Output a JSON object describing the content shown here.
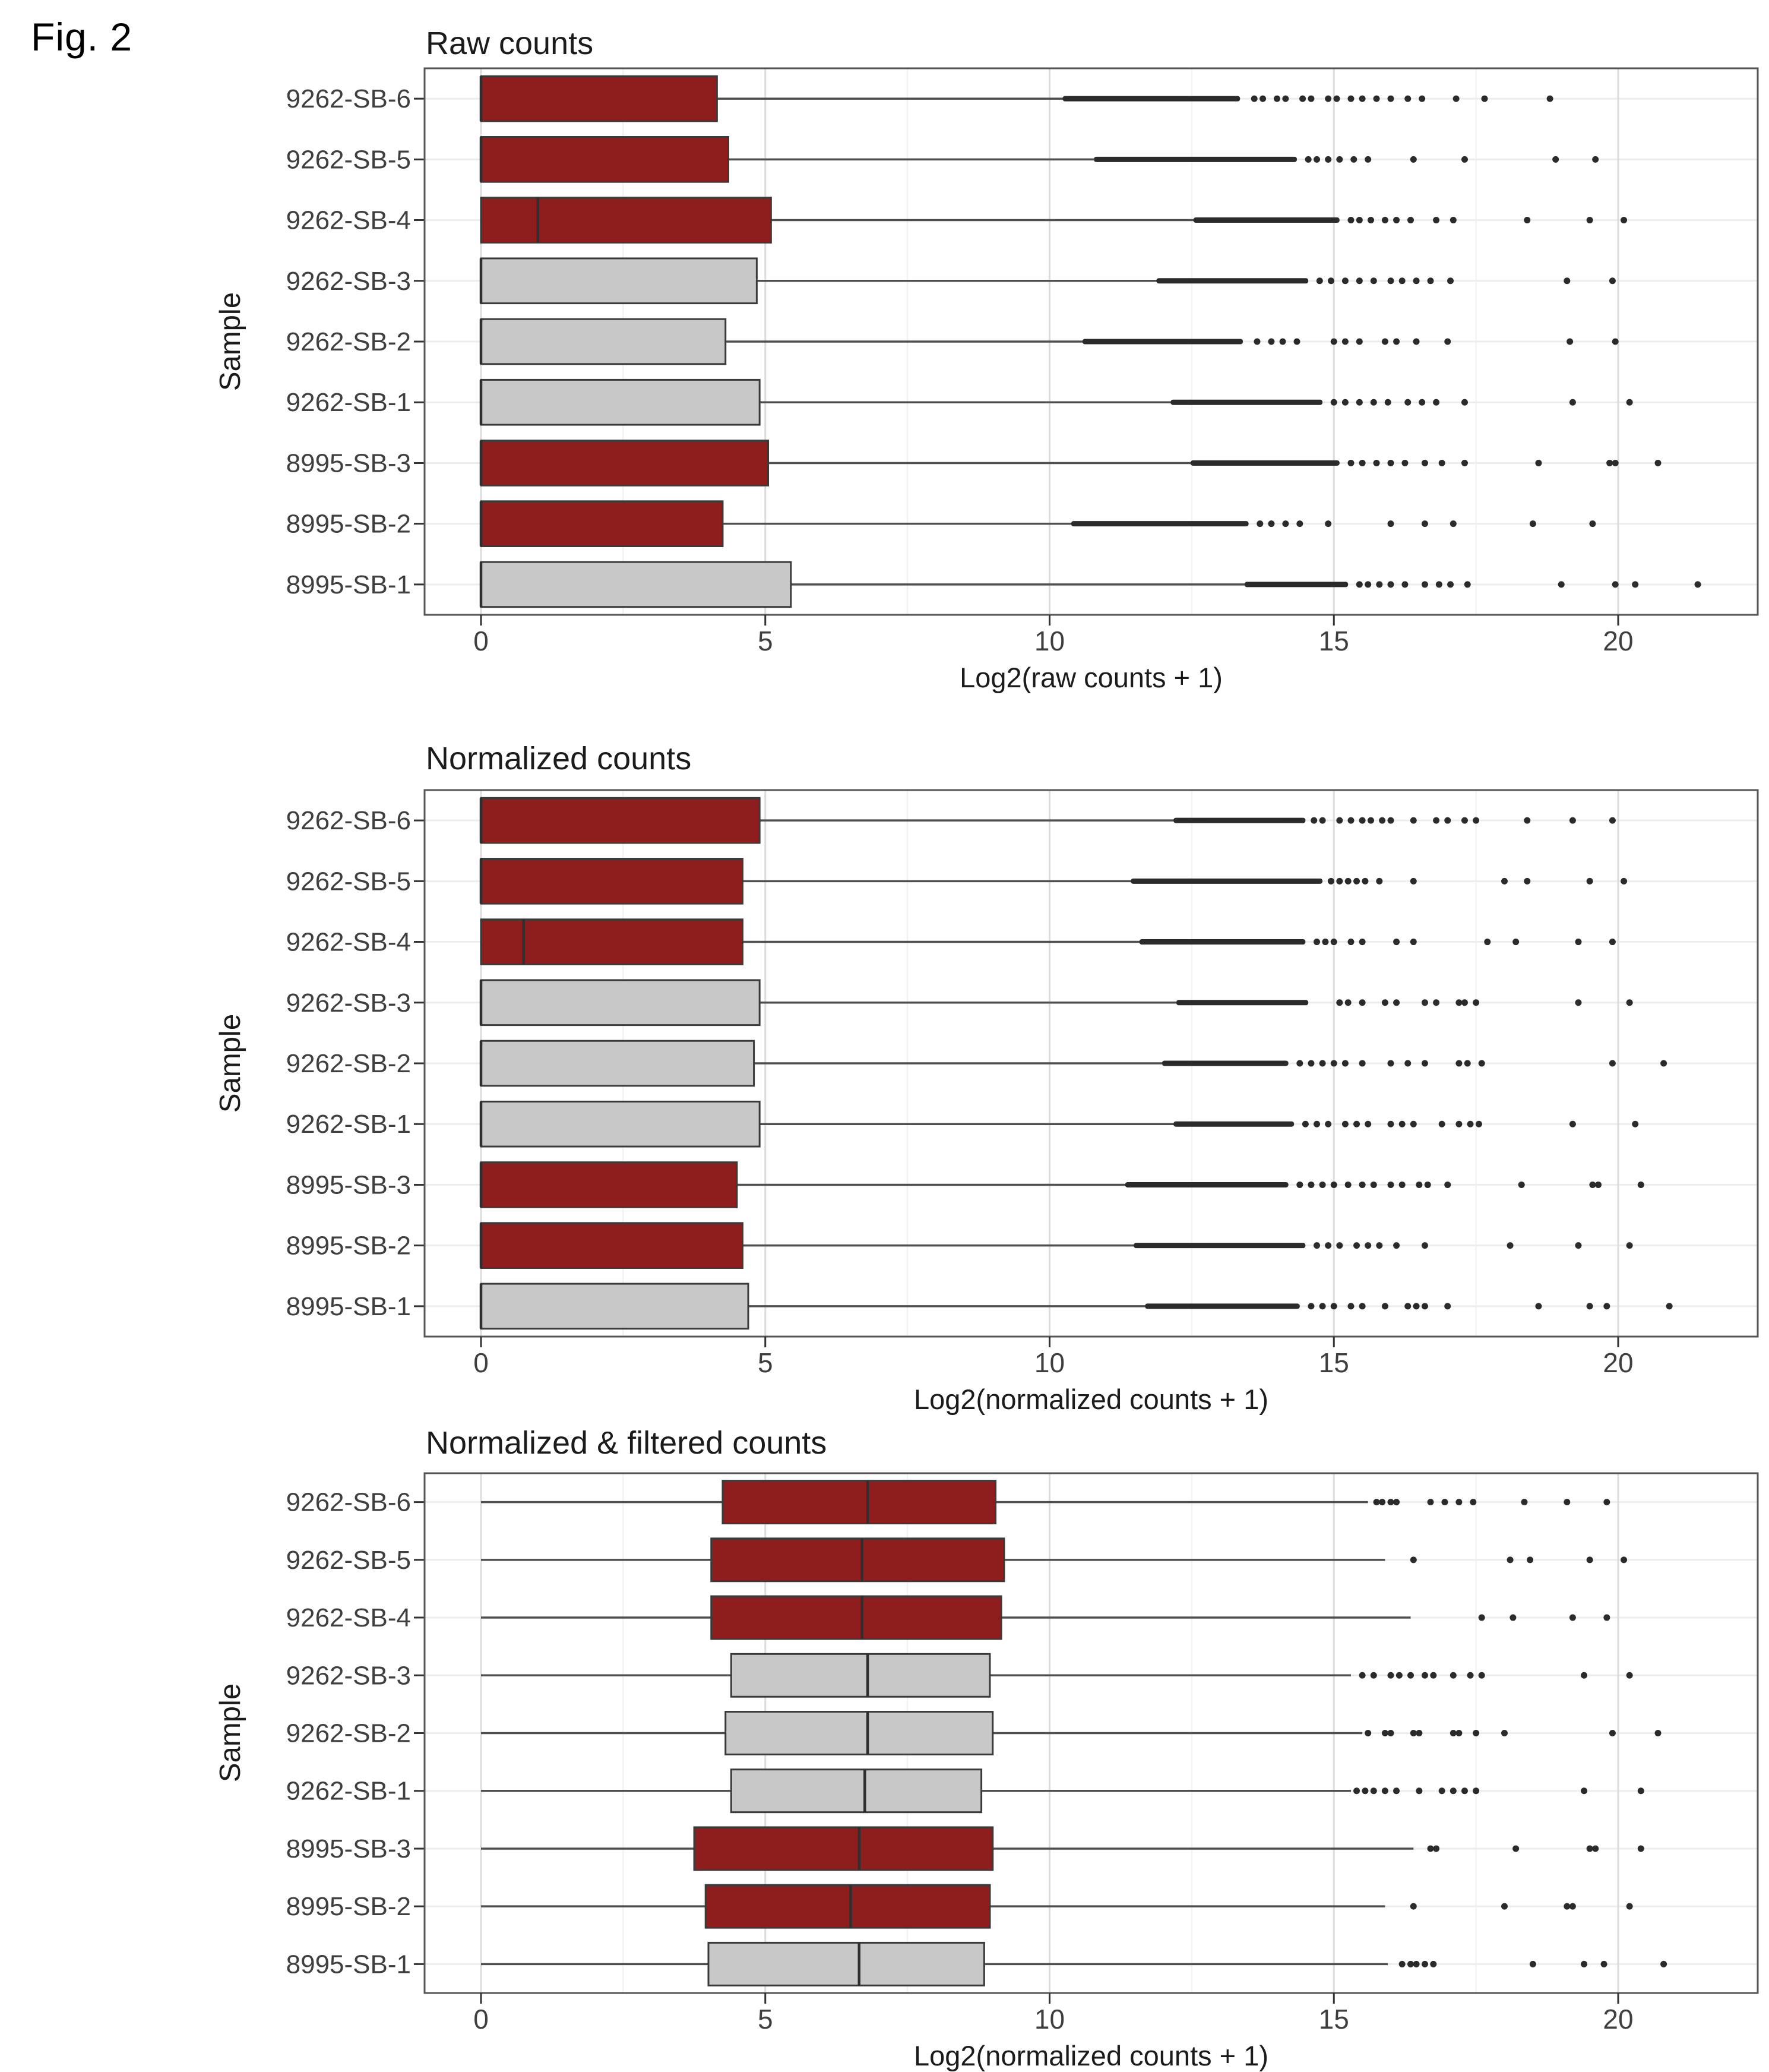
{
  "figure_label": "Fig. 2",
  "colors": {
    "red_fill": "#8E1E1E",
    "gray_fill": "#C8C8C8",
    "box_border": "#3A3A3A",
    "median_line": "#2F2F2F",
    "whisker": "#4E4E4E",
    "point": "#2B2B2B",
    "grid_major": "#DCDCDC",
    "grid_minor": "#F0F0F0",
    "panel_border": "#555555",
    "tick_text": "#3F3F3F",
    "row_gridline": "#EDEDED"
  },
  "samples": [
    "9262-SB-6",
    "9262-SB-5",
    "9262-SB-4",
    "9262-SB-3",
    "9262-SB-2",
    "9262-SB-1",
    "8995-SB-3",
    "8995-SB-2",
    "8995-SB-1"
  ],
  "chart_data": [
    {
      "type": "boxplot",
      "orientation": "horizontal",
      "title": "Raw counts",
      "xlabel": "Log2(raw counts + 1)",
      "ylabel": "Sample",
      "x_ticks": [
        0,
        5,
        10,
        15,
        20
      ],
      "x_minor_ticks": [
        2.5,
        7.5,
        12.5,
        17.5
      ],
      "x_range": [
        -1,
        22.4
      ],
      "grid": true,
      "rows": [
        {
          "sample": "9262-SB-6",
          "color": "red",
          "q1": 0,
          "median": 0,
          "q3": 4.15,
          "whisker_lo": 0,
          "whisker_hi": 10.25,
          "dense_to": 13.35,
          "outliers": [
            13.6,
            13.75,
            14.0,
            14.15,
            14.45,
            14.6,
            14.9,
            15.05,
            15.3,
            15.5,
            15.75,
            16.0,
            16.3,
            16.55,
            17.15,
            17.65,
            18.8
          ]
        },
        {
          "sample": "9262-SB-5",
          "color": "red",
          "q1": 0,
          "median": 0,
          "q3": 4.35,
          "whisker_lo": 0,
          "whisker_hi": 10.8,
          "dense_to": 14.35,
          "outliers": [
            14.55,
            14.7,
            14.9,
            15.1,
            15.35,
            15.6,
            16.4,
            17.3,
            18.9,
            19.6
          ]
        },
        {
          "sample": "9262-SB-4",
          "color": "red",
          "q1": 0,
          "median": 1.0,
          "q3": 5.1,
          "whisker_lo": 0,
          "whisker_hi": 12.55,
          "dense_to": 15.1,
          "outliers": [
            15.3,
            15.45,
            15.65,
            15.9,
            16.1,
            16.35,
            16.8,
            17.1,
            18.4,
            19.5,
            20.1
          ]
        },
        {
          "sample": "9262-SB-3",
          "color": "gray",
          "q1": 0,
          "median": 0,
          "q3": 4.85,
          "whisker_lo": 0,
          "whisker_hi": 11.9,
          "dense_to": 14.55,
          "outliers": [
            14.75,
            14.95,
            15.2,
            15.45,
            15.7,
            16.0,
            16.2,
            16.45,
            16.7,
            17.05,
            19.1,
            19.9
          ]
        },
        {
          "sample": "9262-SB-2",
          "color": "gray",
          "q1": 0,
          "median": 0,
          "q3": 4.3,
          "whisker_lo": 0,
          "whisker_hi": 10.6,
          "dense_to": 13.4,
          "outliers": [
            13.65,
            13.9,
            14.1,
            14.35,
            15.0,
            15.2,
            15.45,
            15.9,
            16.1,
            16.45,
            17.0,
            19.15,
            19.95
          ]
        },
        {
          "sample": "9262-SB-1",
          "color": "gray",
          "q1": 0,
          "median": 0,
          "q3": 4.9,
          "whisker_lo": 0,
          "whisker_hi": 12.15,
          "dense_to": 14.8,
          "outliers": [
            15.0,
            15.2,
            15.45,
            15.7,
            15.95,
            16.3,
            16.55,
            16.8,
            17.3,
            19.2,
            20.2
          ]
        },
        {
          "sample": "8995-SB-3",
          "color": "red",
          "q1": 0,
          "median": 0,
          "q3": 5.05,
          "whisker_lo": 0,
          "whisker_hi": 12.5,
          "dense_to": 15.1,
          "outliers": [
            15.3,
            15.5,
            15.75,
            16.0,
            16.25,
            16.6,
            16.9,
            17.3,
            18.6,
            19.85,
            19.95,
            20.7
          ]
        },
        {
          "sample": "8995-SB-2",
          "color": "red",
          "q1": 0,
          "median": 0,
          "q3": 4.25,
          "whisker_lo": 0,
          "whisker_hi": 10.4,
          "dense_to": 13.5,
          "outliers": [
            13.7,
            13.9,
            14.15,
            14.4,
            14.9,
            16.0,
            16.6,
            17.1,
            18.5,
            19.55
          ]
        },
        {
          "sample": "8995-SB-1",
          "color": "gray",
          "q1": 0,
          "median": 0,
          "q3": 5.45,
          "whisker_lo": 0,
          "whisker_hi": 13.45,
          "dense_to": 15.25,
          "outliers": [
            15.45,
            15.6,
            15.8,
            16.0,
            16.25,
            16.6,
            16.85,
            17.05,
            17.35,
            19.0,
            19.95,
            20.3,
            21.4
          ]
        }
      ]
    },
    {
      "type": "boxplot",
      "orientation": "horizontal",
      "title": "Normalized counts",
      "xlabel": "Log2(normalized counts + 1)",
      "ylabel": "Sample",
      "x_ticks": [
        0,
        5,
        10,
        15,
        20
      ],
      "x_minor_ticks": [
        2.5,
        7.5,
        12.5,
        17.5
      ],
      "x_range": [
        -1,
        22.4
      ],
      "grid": true,
      "rows": [
        {
          "sample": "9262-SB-6",
          "color": "red",
          "q1": 0,
          "median": 0,
          "q3": 4.9,
          "whisker_lo": 0,
          "whisker_hi": 12.2,
          "dense_to": 14.5,
          "outliers": [
            14.65,
            14.8,
            15.1,
            15.3,
            15.5,
            15.65,
            15.85,
            16.0,
            16.4,
            16.8,
            17.0,
            17.3,
            17.5,
            18.4,
            19.2,
            19.9
          ]
        },
        {
          "sample": "9262-SB-5",
          "color": "red",
          "q1": 0,
          "median": 0,
          "q3": 4.6,
          "whisker_lo": 0,
          "whisker_hi": 11.45,
          "dense_to": 14.8,
          "outliers": [
            14.95,
            15.1,
            15.25,
            15.4,
            15.55,
            15.8,
            16.4,
            18.0,
            18.4,
            19.5,
            20.1
          ]
        },
        {
          "sample": "9262-SB-4",
          "color": "red",
          "q1": 0,
          "median": 0.75,
          "q3": 4.6,
          "whisker_lo": 0,
          "whisker_hi": 11.6,
          "dense_to": 14.5,
          "outliers": [
            14.7,
            14.85,
            15.0,
            15.3,
            15.5,
            16.1,
            16.4,
            17.7,
            18.2,
            19.3,
            19.9
          ]
        },
        {
          "sample": "9262-SB-3",
          "color": "gray",
          "q1": 0,
          "median": 0,
          "q3": 4.9,
          "whisker_lo": 0,
          "whisker_hi": 12.25,
          "dense_to": 14.55,
          "outliers": [
            15.1,
            15.25,
            15.5,
            15.9,
            16.1,
            16.6,
            16.8,
            17.2,
            17.3,
            17.5,
            19.3,
            20.2
          ]
        },
        {
          "sample": "9262-SB-2",
          "color": "gray",
          "q1": 0,
          "median": 0,
          "q3": 4.8,
          "whisker_lo": 0,
          "whisker_hi": 12.0,
          "dense_to": 14.2,
          "outliers": [
            14.4,
            14.6,
            14.8,
            15.0,
            15.2,
            15.5,
            16.0,
            16.3,
            16.6,
            17.2,
            17.35,
            17.6,
            19.9,
            20.8
          ]
        },
        {
          "sample": "9262-SB-1",
          "color": "gray",
          "q1": 0,
          "median": 0,
          "q3": 4.9,
          "whisker_lo": 0,
          "whisker_hi": 12.2,
          "dense_to": 14.3,
          "outliers": [
            14.5,
            14.7,
            14.9,
            15.2,
            15.4,
            15.6,
            16.0,
            16.2,
            16.4,
            16.9,
            17.2,
            17.4,
            17.55,
            19.2,
            20.3
          ]
        },
        {
          "sample": "8995-SB-3",
          "color": "red",
          "q1": 0,
          "median": 0,
          "q3": 4.5,
          "whisker_lo": 0,
          "whisker_hi": 11.35,
          "dense_to": 14.2,
          "outliers": [
            14.4,
            14.6,
            14.8,
            15.0,
            15.25,
            15.5,
            15.7,
            16.0,
            16.2,
            16.5,
            16.65,
            17.0,
            18.3,
            19.55,
            19.65,
            20.4
          ]
        },
        {
          "sample": "8995-SB-2",
          "color": "red",
          "q1": 0,
          "median": 0,
          "q3": 4.6,
          "whisker_lo": 0,
          "whisker_hi": 11.5,
          "dense_to": 14.5,
          "outliers": [
            14.7,
            14.9,
            15.1,
            15.4,
            15.6,
            15.8,
            16.1,
            16.6,
            18.1,
            19.3,
            20.2
          ]
        },
        {
          "sample": "8995-SB-1",
          "color": "gray",
          "q1": 0,
          "median": 0,
          "q3": 4.7,
          "whisker_lo": 0,
          "whisker_hi": 11.7,
          "dense_to": 14.4,
          "outliers": [
            14.6,
            14.8,
            15.0,
            15.3,
            15.5,
            15.9,
            16.3,
            16.45,
            16.6,
            17.0,
            18.6,
            19.5,
            19.8,
            20.9
          ]
        }
      ]
    },
    {
      "type": "boxplot",
      "orientation": "horizontal",
      "title": "Normalized & filtered counts",
      "xlabel": "Log2(normalized counts + 1)",
      "ylabel": "Sample",
      "x_ticks": [
        0,
        5,
        10,
        15,
        20
      ],
      "x_minor_ticks": [
        2.5,
        7.5,
        12.5,
        17.5
      ],
      "x_range": [
        -1,
        22.4
      ],
      "grid": true,
      "rows": [
        {
          "sample": "9262-SB-6",
          "color": "red",
          "q1": 4.25,
          "median": 6.8,
          "q3": 9.05,
          "whisker_lo": 0,
          "whisker_hi": 15.6,
          "dense_to": null,
          "outliers": [
            15.75,
            15.85,
            16.0,
            16.1,
            16.7,
            16.95,
            17.2,
            17.45,
            18.35,
            19.1,
            19.8
          ]
        },
        {
          "sample": "9262-SB-5",
          "color": "red",
          "q1": 4.05,
          "median": 6.7,
          "q3": 9.2,
          "whisker_lo": 0,
          "whisker_hi": 15.9,
          "dense_to": null,
          "outliers": [
            16.4,
            18.1,
            18.45,
            19.5,
            20.1
          ]
        },
        {
          "sample": "9262-SB-4",
          "color": "red",
          "q1": 4.05,
          "median": 6.7,
          "q3": 9.15,
          "whisker_lo": 0,
          "whisker_hi": 16.35,
          "dense_to": null,
          "outliers": [
            17.6,
            18.15,
            19.2,
            19.8
          ]
        },
        {
          "sample": "9262-SB-3",
          "color": "gray",
          "q1": 4.4,
          "median": 6.8,
          "q3": 8.95,
          "whisker_lo": 0,
          "whisker_hi": 15.3,
          "dense_to": null,
          "outliers": [
            15.5,
            15.7,
            16.0,
            16.15,
            16.35,
            16.6,
            16.75,
            17.1,
            17.4,
            17.6,
            19.4,
            20.2
          ]
        },
        {
          "sample": "9262-SB-2",
          "color": "gray",
          "q1": 4.3,
          "median": 6.8,
          "q3": 9.0,
          "whisker_lo": 0,
          "whisker_hi": 15.5,
          "dense_to": null,
          "outliers": [
            15.6,
            15.9,
            16.0,
            16.4,
            16.5,
            17.1,
            17.2,
            17.5,
            18.0,
            19.9,
            20.7
          ]
        },
        {
          "sample": "9262-SB-1",
          "color": "gray",
          "q1": 4.4,
          "median": 6.75,
          "q3": 8.8,
          "whisker_lo": 0,
          "whisker_hi": 15.3,
          "dense_to": null,
          "outliers": [
            15.4,
            15.55,
            15.7,
            15.9,
            16.1,
            16.5,
            16.9,
            17.1,
            17.3,
            17.5,
            19.4,
            20.4
          ]
        },
        {
          "sample": "8995-SB-3",
          "color": "red",
          "q1": 3.75,
          "median": 6.65,
          "q3": 9.0,
          "whisker_lo": 0,
          "whisker_hi": 16.4,
          "dense_to": null,
          "outliers": [
            16.7,
            16.8,
            18.2,
            19.5,
            19.6,
            20.4
          ]
        },
        {
          "sample": "8995-SB-2",
          "color": "red",
          "q1": 3.95,
          "median": 6.5,
          "q3": 8.95,
          "whisker_lo": 0,
          "whisker_hi": 15.9,
          "dense_to": null,
          "outliers": [
            16.4,
            18.0,
            19.1,
            19.2,
            20.2
          ]
        },
        {
          "sample": "8995-SB-1",
          "color": "gray",
          "q1": 4.0,
          "median": 6.65,
          "q3": 8.85,
          "whisker_lo": 0,
          "whisker_hi": 15.95,
          "dense_to": null,
          "outliers": [
            16.2,
            16.35,
            16.45,
            16.6,
            16.75,
            18.5,
            19.4,
            19.75,
            20.8
          ]
        }
      ]
    }
  ]
}
